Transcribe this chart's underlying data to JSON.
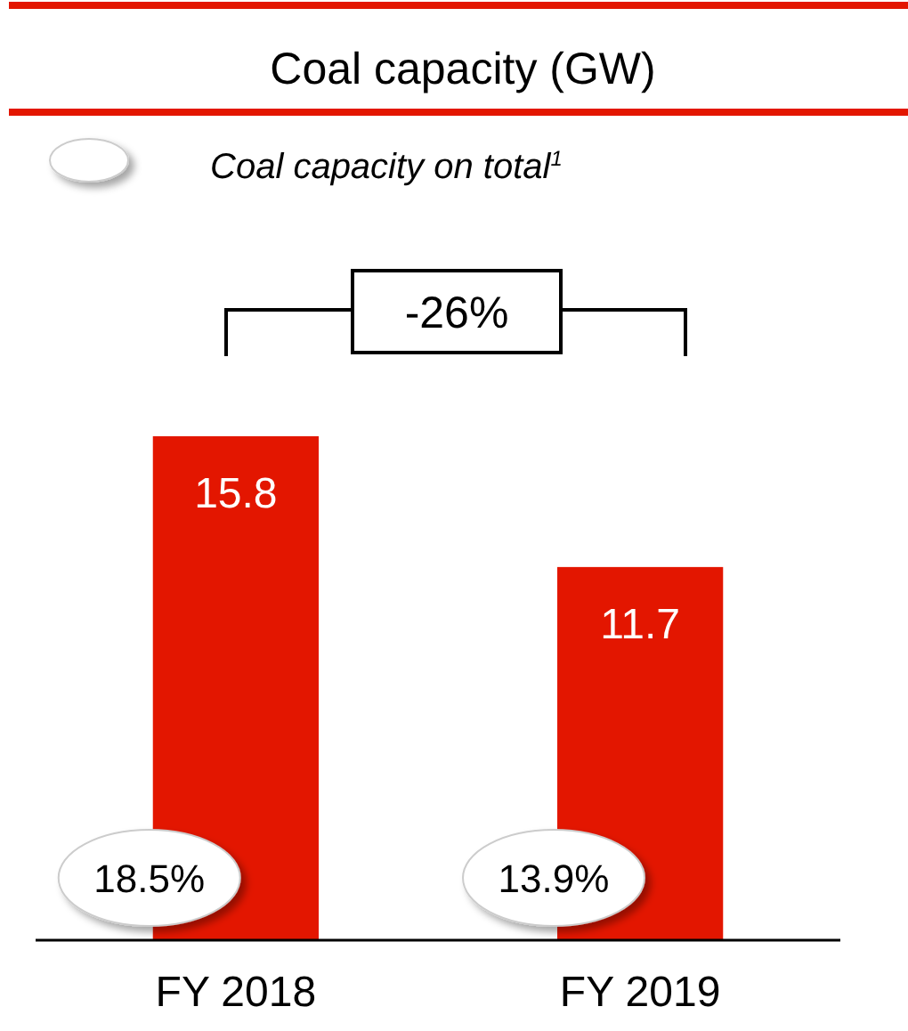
{
  "chart_data": {
    "type": "bar",
    "title": "Coal capacity (GW)",
    "categories": [
      "FY 2018",
      "FY 2019"
    ],
    "values": [
      15.8,
      11.7
    ],
    "color": "#e31600",
    "data_labels": true,
    "annotations": [
      "Coal capacity on total$^{1}$",
      "-26%",
      "18.5%",
      "13.9%"
    ]
  }
}
